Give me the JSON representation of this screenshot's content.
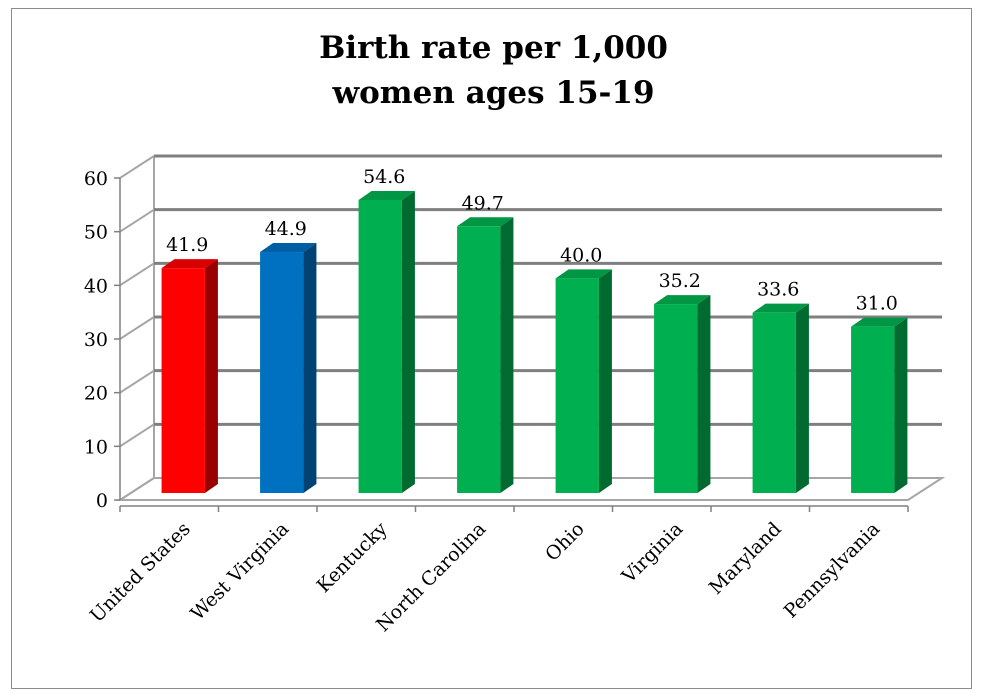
{
  "chart_data": {
    "type": "bar",
    "title": [
      "Birth rate per 1,000",
      "women ages 15-19"
    ],
    "categories": [
      "United States",
      "West Virginia",
      "Kentucky",
      "North Carolina",
      "Ohio",
      "Virginia",
      "Maryland",
      "Pennsylvania"
    ],
    "values": [
      41.9,
      44.9,
      54.6,
      49.7,
      40.0,
      35.2,
      33.6,
      31.0
    ],
    "data_labels": [
      "41.9",
      "44.9",
      "54.6",
      "49.7",
      "40.0",
      "35.2",
      "33.6",
      "31.0"
    ],
    "bar_colors": [
      "#ff0000",
      "#0070c0",
      "#00b050",
      "#00b050",
      "#00b050",
      "#00b050",
      "#00b050",
      "#00b050"
    ],
    "ylim": [
      0,
      60
    ],
    "yticks": [
      0,
      10,
      20,
      30,
      40,
      50,
      60
    ],
    "grid": true,
    "style": "3d-column"
  }
}
